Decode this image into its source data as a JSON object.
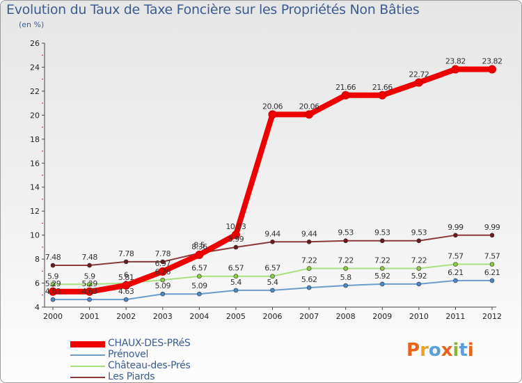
{
  "title": "Evolution du Taux de Taxe Foncière sur les Propriétés Non Bâties",
  "subtitle": "(en %)",
  "logo": {
    "text": "Proxiti",
    "letter_colors": [
      "#e8641b",
      "#f0a020",
      "#5aa0d8",
      "#e8641b",
      "#88b830",
      "#5aa0d8",
      "#e8641b"
    ]
  },
  "chart_data": {
    "type": "line",
    "title": "Evolution du Taux de Taxe Foncière sur les Propriétés Non Bâties",
    "ylabel": "(en %)",
    "xlabel": "",
    "ylim": [
      4,
      26
    ],
    "yticks": [
      4,
      6,
      8,
      10,
      12,
      14,
      16,
      18,
      20,
      22,
      24,
      26
    ],
    "grid": false,
    "legend_position": "bottom-left",
    "categories": [
      "2000",
      "2001",
      "2002",
      "2003",
      "2004",
      "2005",
      "2006",
      "2007",
      "2008",
      "2009",
      "2010",
      "2011",
      "2012"
    ],
    "series": [
      {
        "name": "CHAUX-DES-PRéS",
        "color": "#ee0000",
        "marker_color": "#ee0000",
        "width": 8,
        "values": [
          5.29,
          5.29,
          5.81,
          6.97,
          8.36,
          10.03,
          20.06,
          20.06,
          21.66,
          21.66,
          22.72,
          23.82,
          23.82
        ],
        "labels": [
          "5.29",
          "5.29",
          "5.81",
          "6.97",
          "8.36",
          "10.03",
          "20.06",
          "20.06",
          "21.66",
          "21.66",
          "22.72",
          "23.82",
          "23.82"
        ]
      },
      {
        "name": "Prénovel",
        "color": "#6c9ccc",
        "marker_color": "#4a88c8",
        "width": 2,
        "values": [
          4.63,
          4.63,
          4.63,
          5.09,
          5.09,
          5.4,
          5.4,
          5.62,
          5.8,
          5.92,
          5.92,
          6.21,
          6.21
        ],
        "labels": [
          "4.63",
          "4.63",
          "4.63",
          "5.09",
          "5.09",
          "5.4",
          "5.4",
          "5.62",
          "5.8",
          "5.92",
          "5.92",
          "6.21",
          "6.21"
        ]
      },
      {
        "name": "Château-des-Prés",
        "color": "#a8e080",
        "marker_color": "#88cc44",
        "width": 2,
        "values": [
          5.9,
          5.9,
          6.0,
          6.26,
          6.57,
          6.57,
          6.57,
          7.22,
          7.22,
          7.22,
          7.22,
          7.57,
          7.57
        ],
        "labels": [
          "5.9",
          "5.9",
          "6",
          "6.26",
          "6.57",
          "6.57",
          "6.57",
          "7.22",
          "7.22",
          "7.22",
          "7.22",
          "7.57",
          "7.57"
        ]
      },
      {
        "name": "Les Piards",
        "color": "#8a3a3a",
        "marker_color": "#6a1a1a",
        "width": 2,
        "values": [
          7.48,
          7.48,
          7.78,
          7.78,
          8.5,
          8.99,
          9.44,
          9.44,
          9.53,
          9.53,
          9.53,
          9.99,
          9.99
        ],
        "labels": [
          "7.48",
          "7.48",
          "7.78",
          "7.78",
          "8.5",
          "8.99",
          "9.44",
          "9.44",
          "9.53",
          "9.53",
          "9.53",
          "9.99",
          "9.99"
        ]
      }
    ]
  }
}
